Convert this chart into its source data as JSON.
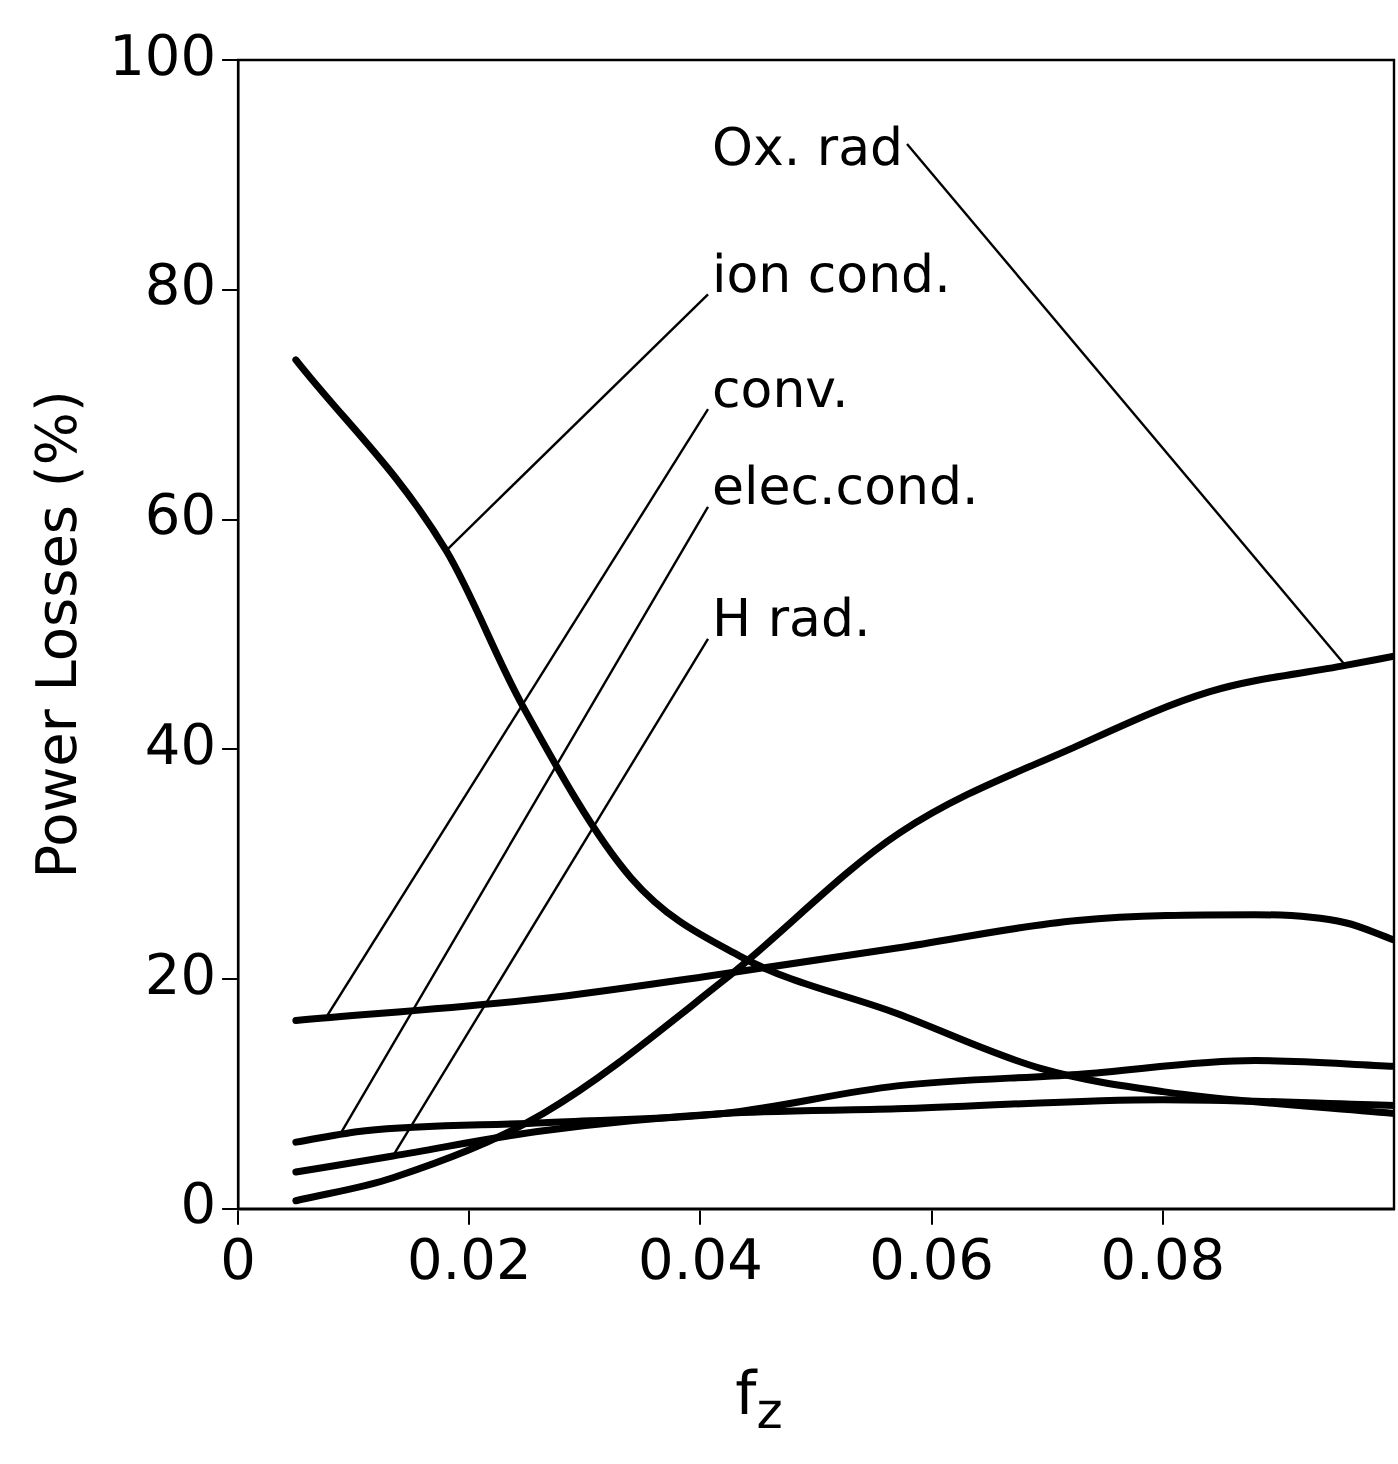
{
  "chart_data": {
    "type": "line",
    "xlabel": "f$_{z}$",
    "ylabel": "Power Losses (%)",
    "xlim": [
      0,
      0.1
    ],
    "xticks": [
      0,
      0.02,
      0.04,
      0.06,
      0.08
    ],
    "ylim": [
      0,
      100
    ],
    "yticks": [
      0,
      20,
      40,
      60,
      80,
      100
    ],
    "grid": false,
    "legend": false,
    "marker": "none",
    "line_style": "solid",
    "series": [
      {
        "name": "Ox. rad",
        "color": "#000000",
        "x": [
          0.005,
          0.0134,
          0.0264,
          0.0419,
          0.0572,
          0.0726,
          0.084,
          0.0958,
          0.1
        ],
        "values": [
          0.7,
          2.7,
          8.3,
          19.8,
          32.7,
          40.3,
          45,
          47.3,
          48.1
        ]
      },
      {
        "name": "ion cond.",
        "color": "#000000",
        "x": [
          0.005,
          0.018,
          0.0245,
          0.034,
          0.0434,
          0.057,
          0.0695,
          0.08,
          0.1
        ],
        "values": [
          73.9,
          57.3,
          44,
          28.8,
          22,
          17,
          12.2,
          10.2,
          8.3
        ]
      },
      {
        "name": "conv.",
        "color": "#000000",
        "x": [
          0.005,
          0.0264,
          0.0403,
          0.057,
          0.0726,
          0.088,
          0.0958,
          0.1
        ],
        "values": [
          16.4,
          18.3,
          20.2,
          22.7,
          25.1,
          25.6,
          24.9,
          23.4
        ]
      },
      {
        "name": "elec.cond.",
        "color": "#000000",
        "x": [
          0.005,
          0.011,
          0.0264,
          0.042,
          0.057,
          0.0726,
          0.088,
          0.1
        ],
        "values": [
          5.8,
          6.8,
          7.5,
          8.3,
          10.7,
          11.7,
          12.9,
          12.4
        ]
      },
      {
        "name": "H rad.",
        "color": "#000000",
        "x": [
          0.005,
          0.0134,
          0.0264,
          0.042,
          0.057,
          0.08,
          0.1
        ],
        "values": [
          3.2,
          4.6,
          6.8,
          8.3,
          8.7,
          9.5,
          9
        ]
      }
    ]
  }
}
